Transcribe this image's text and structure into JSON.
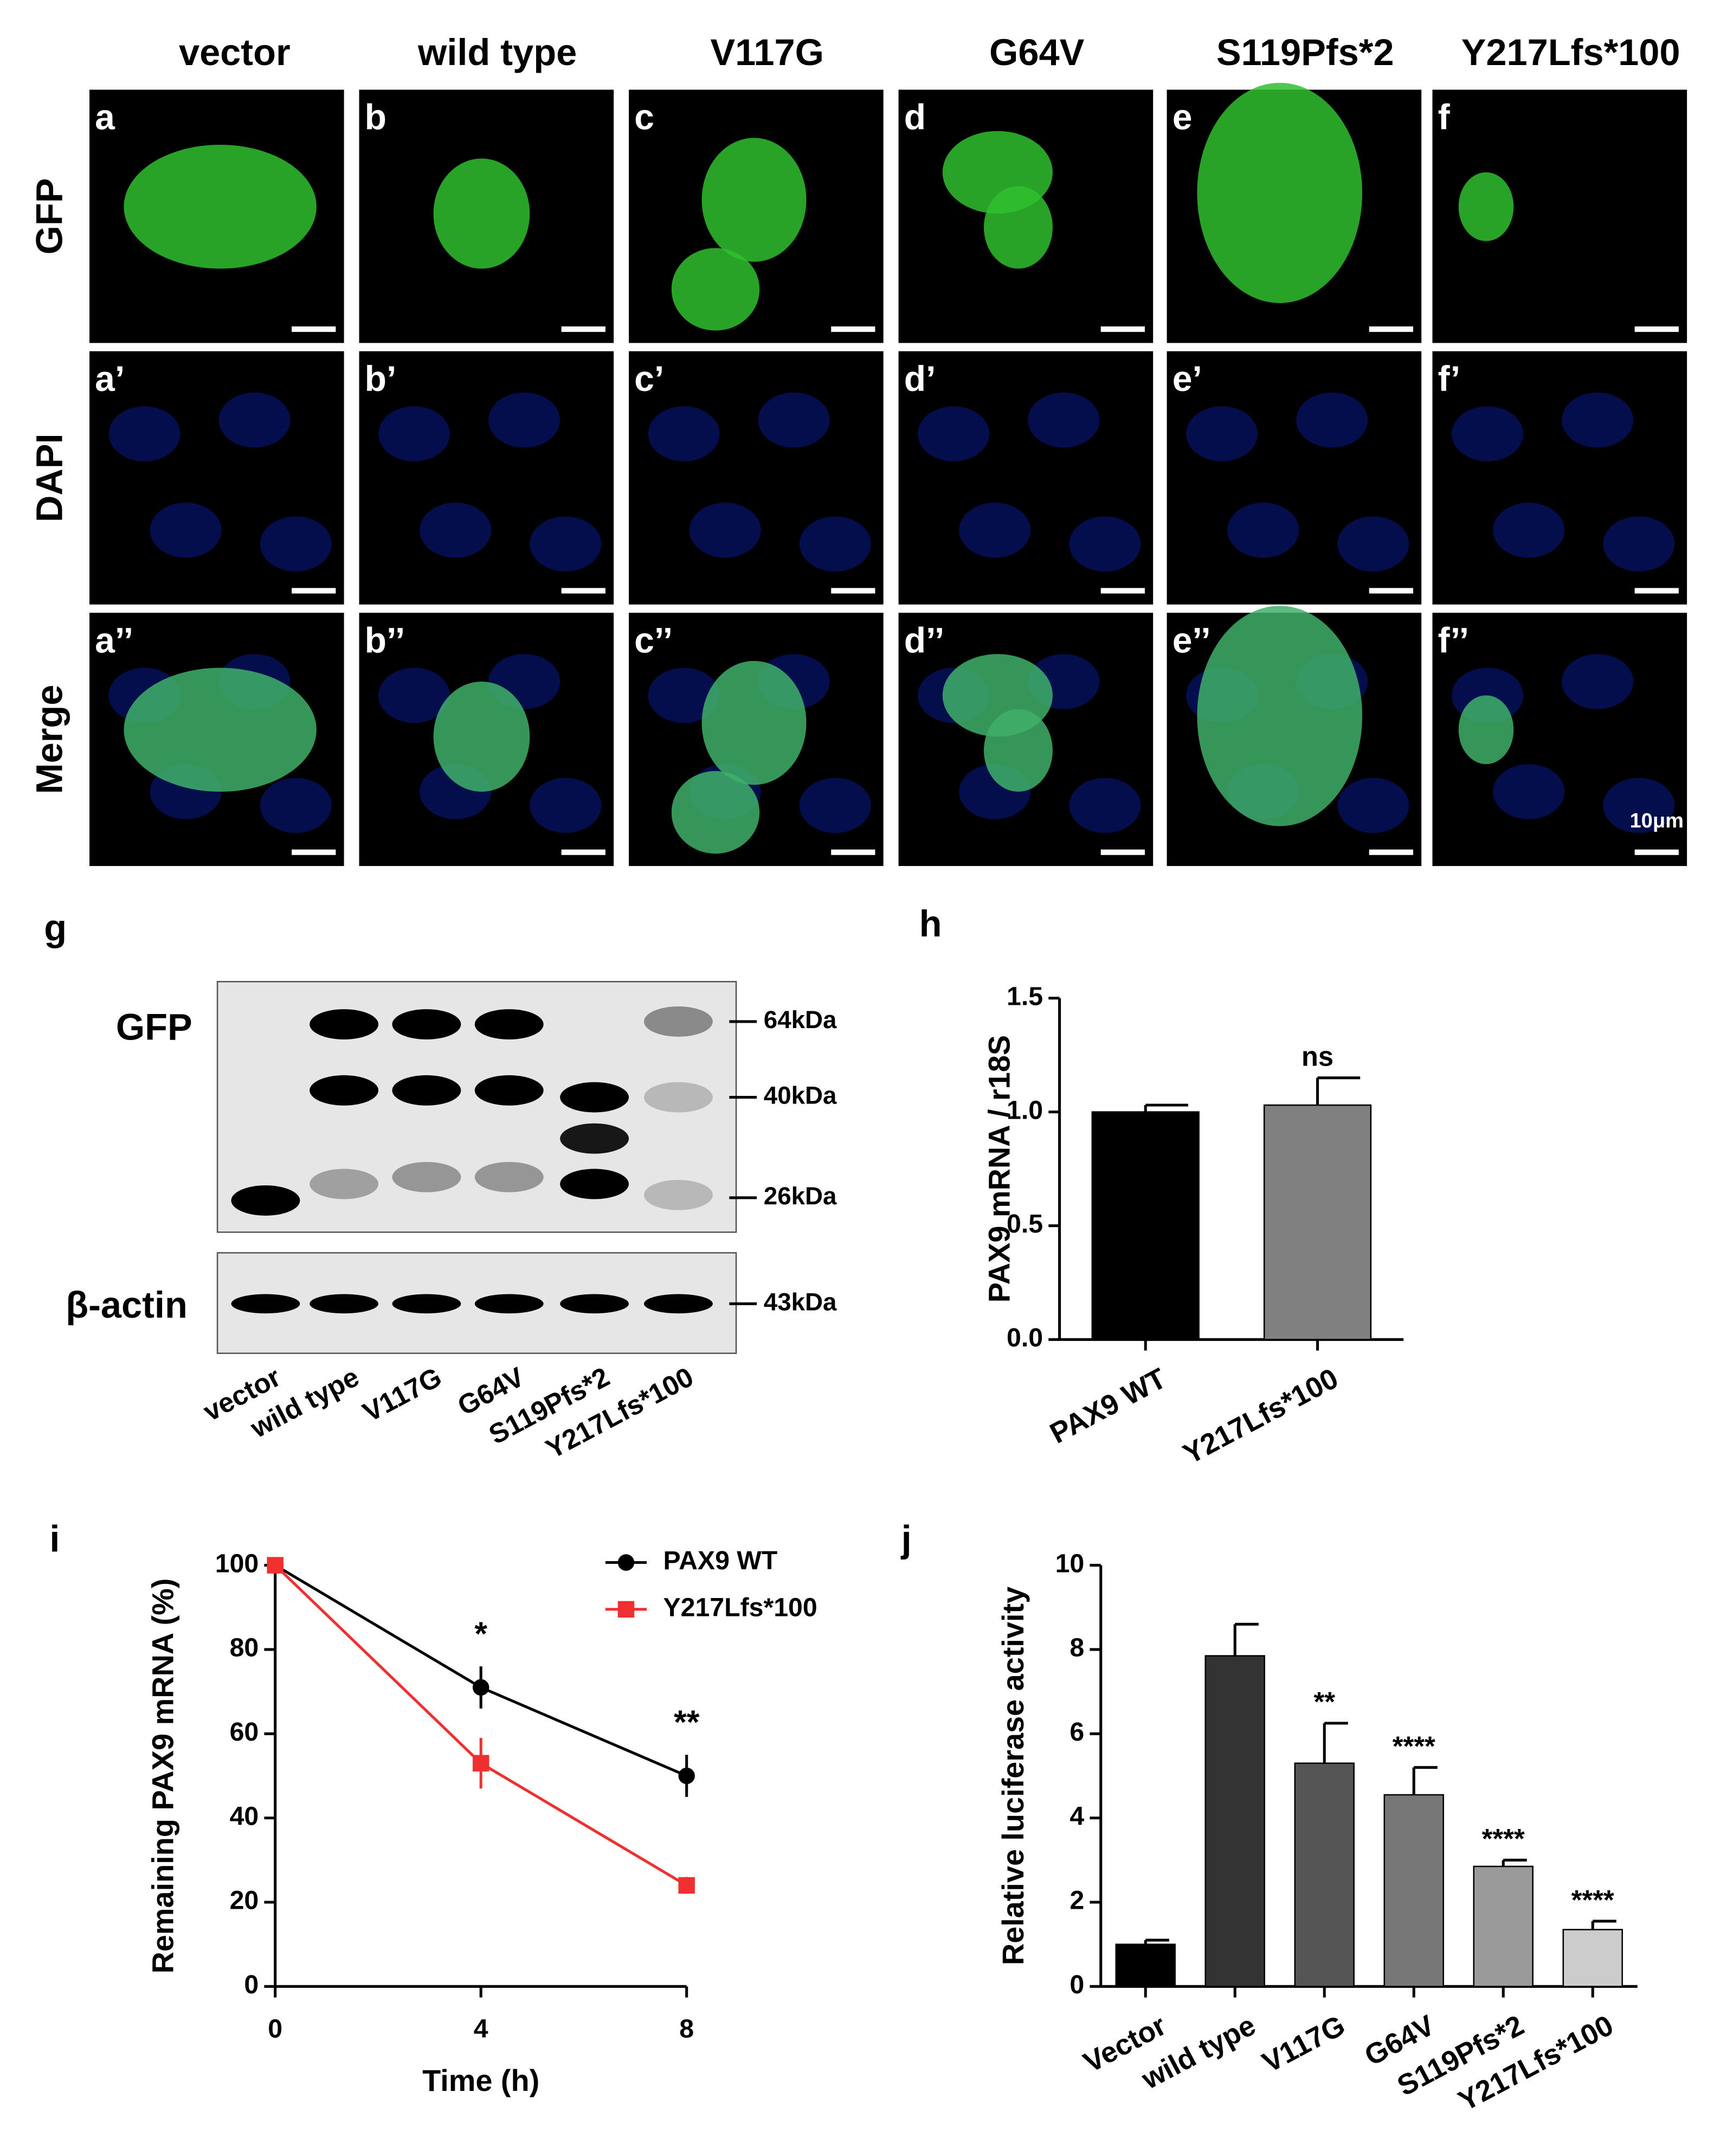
{
  "microscopy": {
    "columns": [
      "vector",
      "wild type",
      "V117G",
      "G64V",
      "S119Pfs*2",
      "Y217Lfs*100"
    ],
    "rows": [
      "GFP",
      "DAPI",
      "Merge"
    ],
    "panels": [
      [
        "a",
        "b",
        "c",
        "d",
        "e",
        "f"
      ],
      [
        "a’",
        "b’",
        "c’",
        "d’",
        "e’",
        "f’"
      ],
      [
        "a’’",
        "b’’",
        "c’’",
        "d’’",
        "e’’",
        "f’’"
      ]
    ],
    "scale_bar": "10μm"
  },
  "western_blot": {
    "panel_label": "g",
    "blots": [
      "GFP",
      "β-actin"
    ],
    "markers": [
      "64kDa",
      "40kDa",
      "26kDa",
      "43kDa"
    ],
    "lanes": [
      "vector",
      "wild type",
      "V117G",
      "G64V",
      "S119Pfs*2",
      "Y217Lfs*100"
    ]
  },
  "chart_data": [
    {
      "type": "bar",
      "panel_label": "h",
      "ylabel": "PAX9 mRNA / r18S",
      "categories": [
        "PAX9 WT",
        "Y217Lfs*100"
      ],
      "values": [
        1.0,
        1.03
      ],
      "errors": [
        0.03,
        0.12
      ],
      "colors": [
        "#000000",
        "#808080"
      ],
      "annotations": [
        null,
        "ns"
      ],
      "ylim": [
        0,
        1.5
      ],
      "yticks": [
        {
          "value": 0,
          "label": "0.0"
        },
        {
          "value": 0.5,
          "label": "0.5"
        },
        {
          "value": 1,
          "label": "1.0"
        },
        {
          "value": 1.5,
          "label": "1.5"
        }
      ]
    },
    {
      "type": "line",
      "panel_label": "i",
      "xlabel": "Time (h)",
      "ylabel": "Remaining PAX9 mRNA (%)",
      "x": [
        0,
        4,
        8
      ],
      "series": [
        {
          "name": "PAX9 WT",
          "color": "#000000",
          "marker": "circle",
          "values": [
            100,
            71,
            50
          ],
          "errors": [
            0,
            5,
            5
          ]
        },
        {
          "name": "Y217Lfs*100",
          "color": "#f03030",
          "marker": "square",
          "values": [
            100,
            53,
            24
          ],
          "errors": [
            0,
            6,
            2
          ]
        }
      ],
      "annotations": [
        null,
        "*",
        "**"
      ],
      "xlim": [
        0,
        8
      ],
      "xticks": [
        0,
        4,
        8
      ],
      "ylim": [
        0,
        100
      ],
      "yticks": [
        0,
        20,
        40,
        60,
        80,
        100
      ]
    },
    {
      "type": "bar",
      "panel_label": "j",
      "ylabel": "Relative luciferase activity",
      "categories": [
        "Vector",
        "wild type",
        "V117G",
        "G64V",
        "S119Pfs*2",
        "Y217Lfs*100"
      ],
      "values": [
        1.0,
        7.85,
        5.3,
        4.55,
        2.85,
        1.35
      ],
      "errors": [
        0.1,
        0.75,
        0.95,
        0.65,
        0.15,
        0.2
      ],
      "colors": [
        "#000000",
        "#333333",
        "#555555",
        "#777777",
        "#9a9a9a",
        "#cccccc"
      ],
      "annotations": [
        null,
        null,
        "**",
        "****",
        "****",
        "****"
      ],
      "ylim": [
        0,
        10
      ],
      "yticks": [
        0,
        2,
        4,
        6,
        8,
        10
      ]
    }
  ]
}
